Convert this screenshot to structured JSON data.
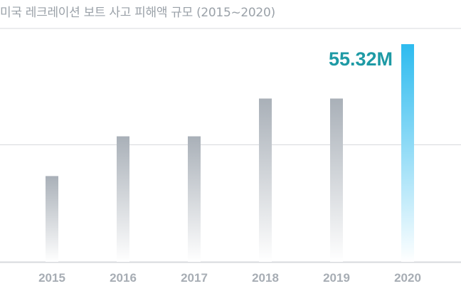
{
  "chart_data": {
    "type": "bar",
    "title": "미국 레크레이션 보트 사고 피해액 규모 (2015~2020)",
    "categories": [
      "2015",
      "2016",
      "2017",
      "2018",
      "2019",
      "2020"
    ],
    "values": [
      21.8,
      31.9,
      31.9,
      41.5,
      41.5,
      55.32
    ],
    "highlight_index": 5,
    "highlight_label": "55.32M",
    "ylim": [
      0,
      57.5
    ],
    "gridlines": [
      0,
      29.8
    ],
    "grid": true,
    "colors": {
      "bar": "#a9b0b8",
      "highlight": "#2dbbef",
      "label": "#1e9aa5",
      "grid": "#d7dadd"
    }
  }
}
